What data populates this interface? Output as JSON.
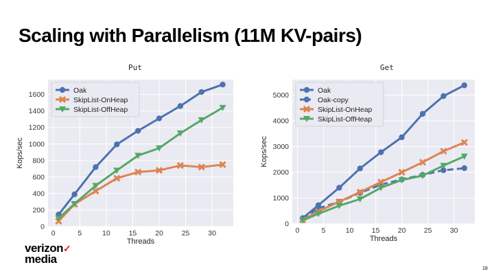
{
  "slide": {
    "title": "Scaling with Parallelism (11M KV-pairs)",
    "brand_line1": "verizon",
    "brand_check": "✓",
    "brand_line2": "media",
    "page_number": "18"
  },
  "chart_data": [
    {
      "type": "line",
      "title": "Put",
      "xlabel": "Threads",
      "ylabel": "Kops/sec",
      "xlim": [
        -1,
        34
      ],
      "ylim": [
        0,
        1780
      ],
      "xticks": [
        0,
        5,
        10,
        15,
        20,
        25,
        30
      ],
      "yticks": [
        0,
        200,
        400,
        600,
        800,
        1000,
        1200,
        1400,
        1600
      ],
      "grid": true,
      "legend_position": "top-left",
      "series": [
        {
          "name": "Oak",
          "color": "#4c72b0",
          "marker": "circle",
          "dashed": false,
          "x": [
            1,
            4,
            8,
            12,
            16,
            20,
            24,
            28,
            32
          ],
          "values": [
            145,
            390,
            720,
            995,
            1160,
            1310,
            1460,
            1630,
            1720
          ]
        },
        {
          "name": "SkipList-OnHeap",
          "color": "#dd8452",
          "marker": "x",
          "dashed": false,
          "x": [
            1,
            4,
            8,
            12,
            16,
            20,
            24,
            28,
            32
          ],
          "values": [
            65,
            270,
            430,
            585,
            660,
            680,
            740,
            720,
            750
          ]
        },
        {
          "name": "SkipList-OffHeap",
          "color": "#55a868",
          "marker": "triangle",
          "dashed": false,
          "x": [
            1,
            4,
            8,
            12,
            16,
            20,
            24,
            28,
            32
          ],
          "values": [
            100,
            275,
            495,
            680,
            860,
            950,
            1130,
            1290,
            1440
          ]
        }
      ]
    },
    {
      "type": "line",
      "title": "Get",
      "xlabel": "Threads",
      "ylabel": "Kops/sec",
      "xlim": [
        -1,
        34
      ],
      "ylim": [
        0,
        5600
      ],
      "xticks": [
        0,
        5,
        10,
        15,
        20,
        25,
        30
      ],
      "yticks": [
        0,
        1000,
        2000,
        3000,
        4000,
        5000
      ],
      "grid": true,
      "legend_position": "top-left",
      "series": [
        {
          "name": "Oak",
          "color": "#4c72b0",
          "marker": "circle",
          "dashed": false,
          "x": [
            1,
            4,
            8,
            12,
            16,
            20,
            24,
            28,
            32
          ],
          "values": [
            220,
            720,
            1400,
            2150,
            2780,
            3360,
            4270,
            4960,
            5380
          ]
        },
        {
          "name": "Oak-copy",
          "color": "#4c72b0",
          "marker": "circle",
          "dashed": true,
          "x": [
            1,
            4,
            8,
            12,
            16,
            20,
            24,
            28,
            32
          ],
          "values": [
            200,
            600,
            850,
            1200,
            1520,
            1720,
            1900,
            2080,
            2160
          ]
        },
        {
          "name": "SkipList-OnHeap",
          "color": "#dd8452",
          "marker": "x",
          "dashed": false,
          "x": [
            1,
            4,
            8,
            12,
            16,
            20,
            24,
            28,
            32
          ],
          "values": [
            150,
            480,
            860,
            1230,
            1620,
            2000,
            2390,
            2820,
            3160
          ]
        },
        {
          "name": "SkipList-OffHeap",
          "color": "#55a868",
          "marker": "triangle",
          "dashed": false,
          "x": [
            1,
            4,
            8,
            12,
            16,
            20,
            24,
            28,
            32
          ],
          "values": [
            130,
            390,
            700,
            960,
            1400,
            1700,
            1870,
            2260,
            2620
          ]
        }
      ]
    }
  ]
}
